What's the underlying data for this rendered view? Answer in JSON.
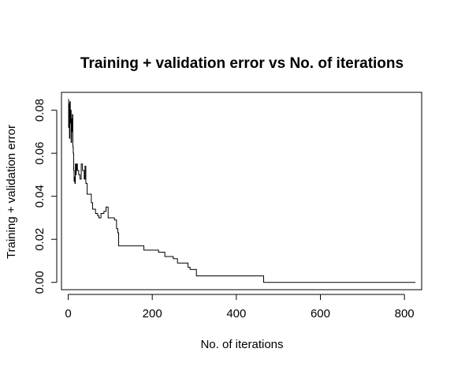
{
  "chart_data": {
    "type": "line",
    "title": "Training + validation error vs No. of iterations",
    "xlabel": "No. of iterations",
    "ylabel": "Training + validation error",
    "xlim": [
      -16,
      841
    ],
    "ylim": [
      -0.0034,
      0.0883
    ],
    "x_ticks": [
      0,
      200,
      400,
      600,
      800
    ],
    "x_tick_labels": [
      "0",
      "200",
      "400",
      "600",
      "800"
    ],
    "y_ticks": [
      0.0,
      0.02,
      0.04,
      0.06,
      0.08
    ],
    "y_tick_labels": [
      "0.00",
      "0.02",
      "0.04",
      "0.06",
      "0.08"
    ],
    "grid": false,
    "line_style": "step",
    "line_color": "#000000",
    "series": [
      {
        "x": [
          0,
          1,
          2,
          3,
          4,
          5,
          6,
          7,
          8,
          9,
          10,
          11,
          12,
          13,
          14,
          15,
          16,
          17,
          18,
          19,
          20,
          22,
          25,
          28,
          31,
          34,
          38,
          40,
          42,
          45,
          48,
          55,
          58,
          65,
          70,
          73,
          78,
          85,
          90,
          95,
          110,
          115,
          118,
          120,
          125,
          140,
          180,
          190,
          200,
          215,
          230,
          240,
          250,
          260,
          275,
          285,
          290,
          300,
          305,
          310,
          320,
          335,
          350,
          400,
          460,
          465,
          500,
          600,
          700,
          800,
          826
        ],
        "y": [
          0.085,
          0.072,
          0.083,
          0.067,
          0.084,
          0.074,
          0.08,
          0.065,
          0.076,
          0.07,
          0.078,
          0.063,
          0.06,
          0.052,
          0.047,
          0.049,
          0.046,
          0.055,
          0.05,
          0.052,
          0.055,
          0.052,
          0.05,
          0.048,
          0.055,
          0.052,
          0.048,
          0.054,
          0.046,
          0.041,
          0.041,
          0.037,
          0.034,
          0.032,
          0.031,
          0.03,
          0.032,
          0.033,
          0.035,
          0.03,
          0.029,
          0.025,
          0.023,
          0.017,
          0.017,
          0.017,
          0.015,
          0.015,
          0.015,
          0.014,
          0.012,
          0.012,
          0.011,
          0.009,
          0.009,
          0.007,
          0.006,
          0.006,
          0.003,
          0.003,
          0.003,
          0.003,
          0.003,
          0.003,
          0.003,
          0.0,
          0.0,
          0.0,
          0.0,
          0.0,
          0.0
        ]
      }
    ]
  }
}
